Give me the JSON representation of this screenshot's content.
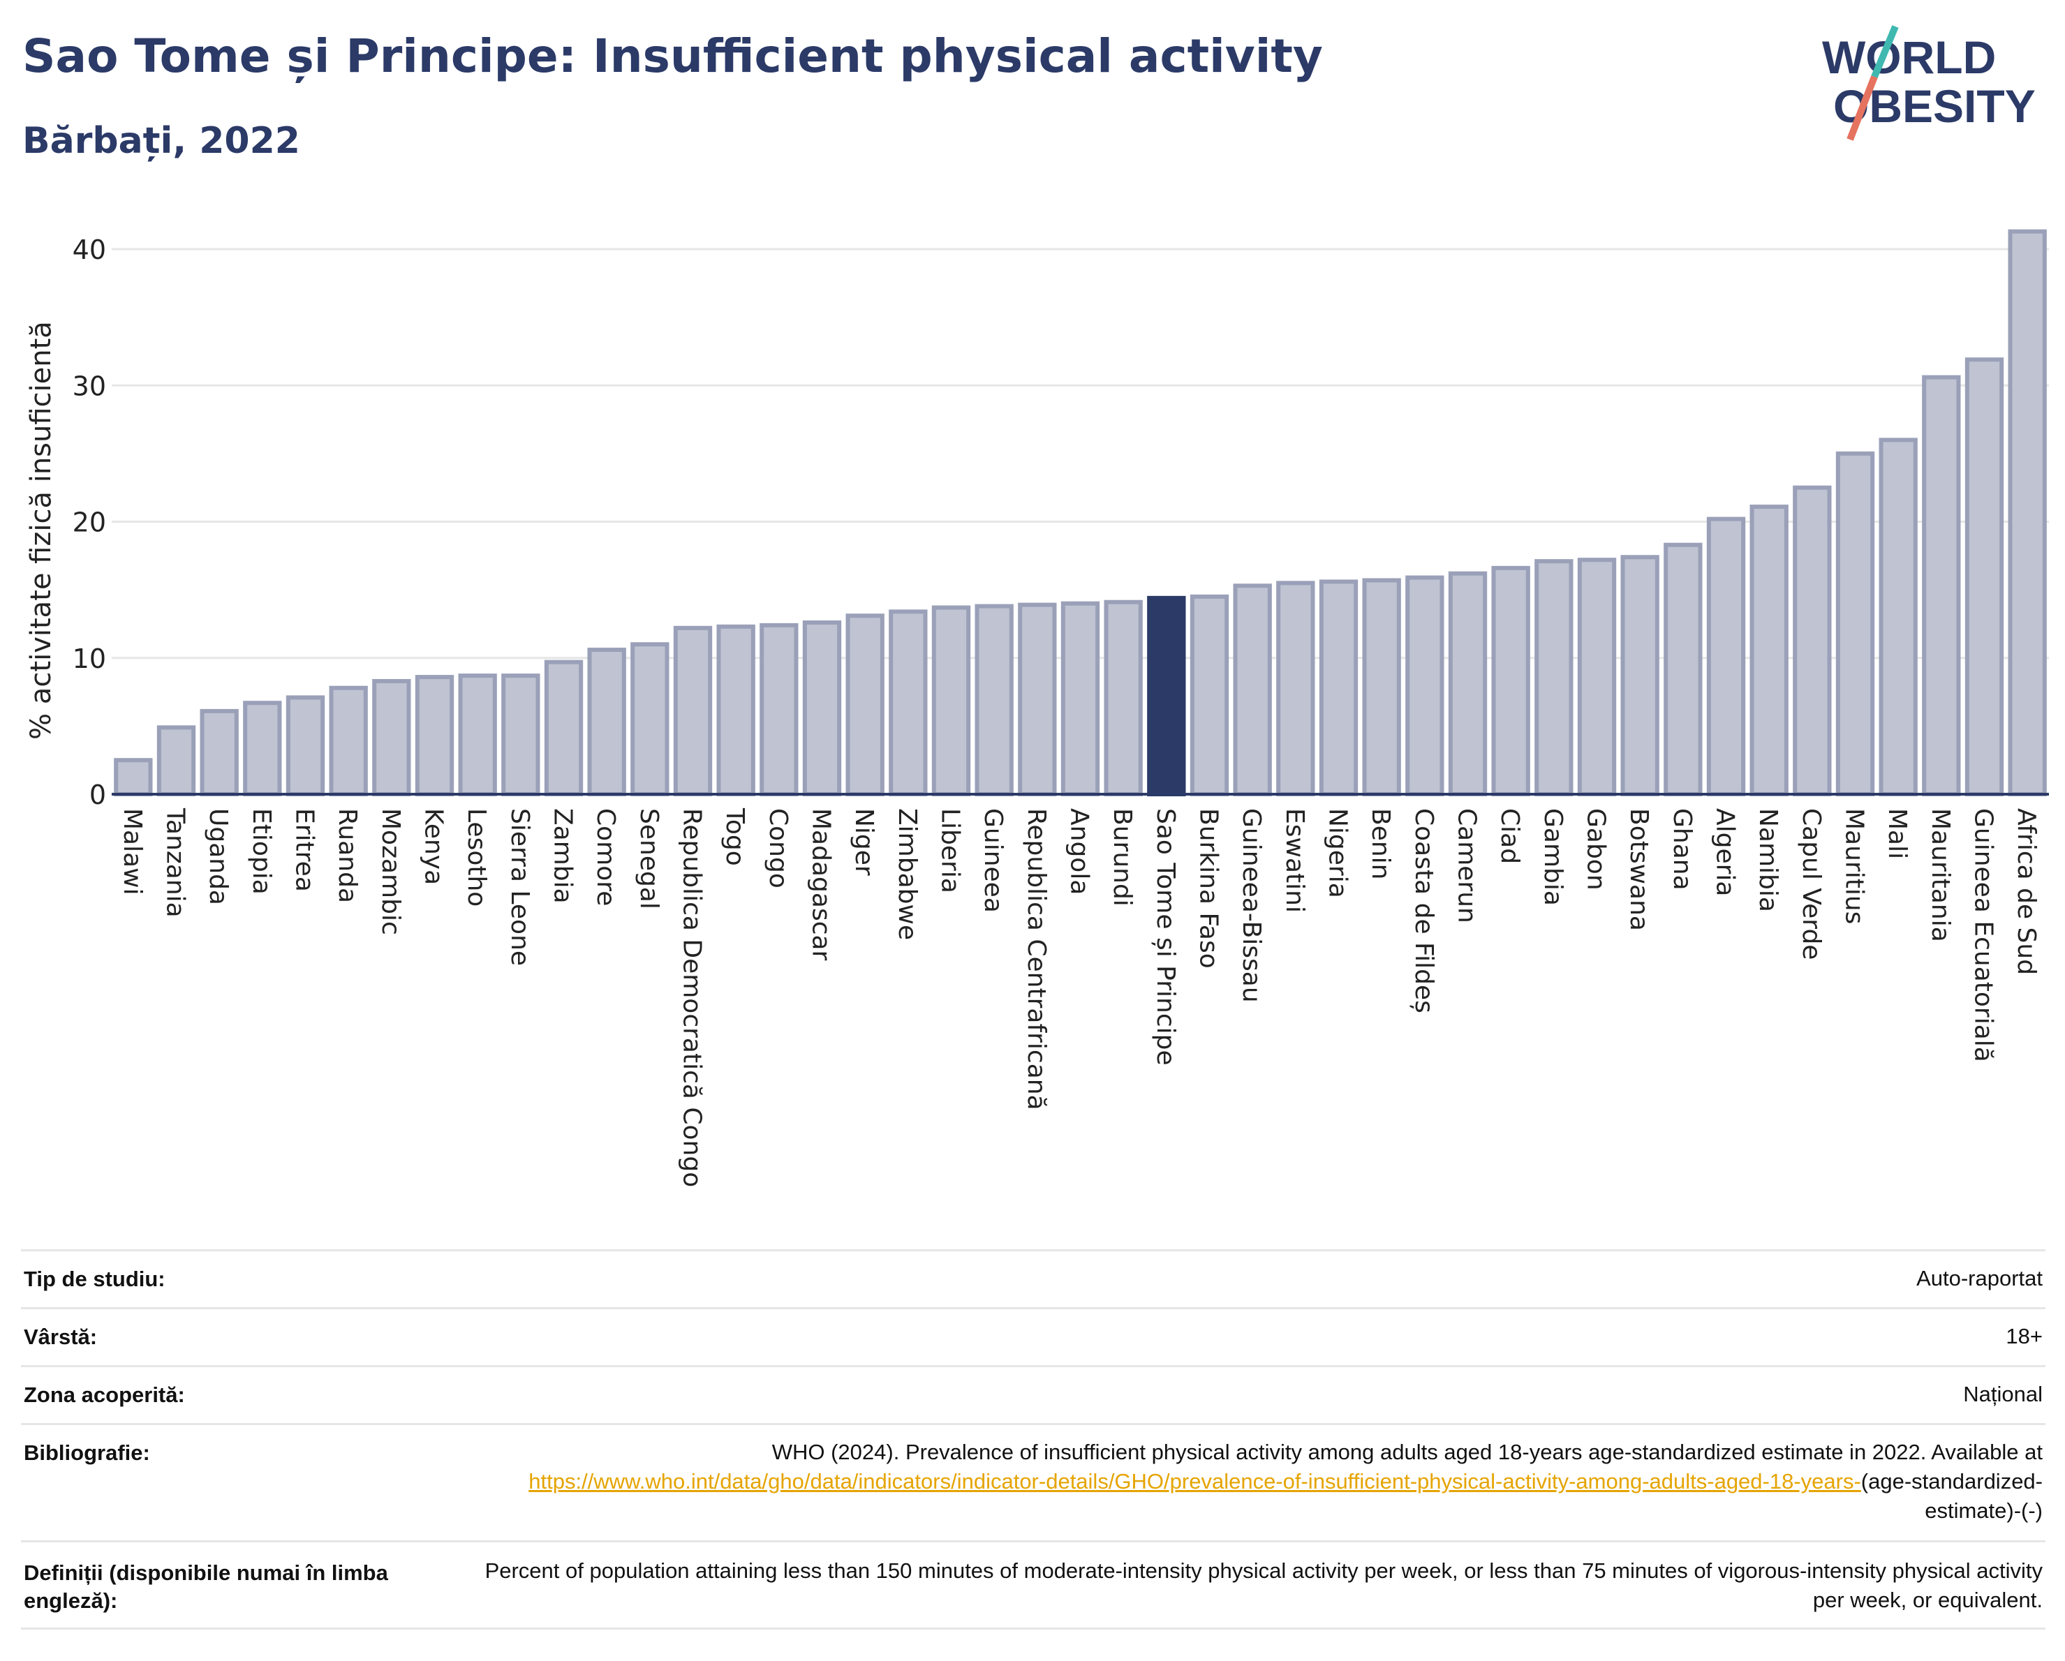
{
  "header": {
    "title": "Sao Tome și Principe: Insufficient physical activity",
    "subtitle": "Bărbați, 2022"
  },
  "logo": {
    "line1": "WORLD",
    "line2": "OBESITY"
  },
  "colors": {
    "bar": "#bfc3d2",
    "bar_border": "#9aa0b8",
    "highlight": "#2b3a67",
    "title": "#2b3a67",
    "link": "#e5a400"
  },
  "chart_data": {
    "type": "bar",
    "ylabel": "% activitate fizică insuficientă",
    "ylim": [
      0,
      42
    ],
    "yticks": [
      0,
      10,
      20,
      30,
      40
    ],
    "grid": true,
    "highlight": "Sao Tome și Principe",
    "categories": [
      "Malawi",
      "Tanzania",
      "Uganda",
      "Etiopia",
      "Eritrea",
      "Ruanda",
      "Mozambic",
      "Kenya",
      "Lesotho",
      "Sierra Leone",
      "Zambia",
      "Comore",
      "Senegal",
      "Republica Democratică Congo",
      "Togo",
      "Congo",
      "Madagascar",
      "Niger",
      "Zimbabwe",
      "Liberia",
      "Guineea",
      "Republica Centrafricană",
      "Angola",
      "Burundi",
      "Sao Tome și Principe",
      "Burkina Faso",
      "Guineea-Bissau",
      "Eswatini",
      "Nigeria",
      "Benin",
      "Coasta de Fildeș",
      "Camerun",
      "Ciad",
      "Gambia",
      "Gabon",
      "Botswana",
      "Ghana",
      "Algeria",
      "Namibia",
      "Capul Verde",
      "Mauritius",
      "Mali",
      "Mauritania",
      "Guineea Ecuatorială",
      "Africa de Sud"
    ],
    "values": [
      2.5,
      4.9,
      6.1,
      6.7,
      7.1,
      7.8,
      8.3,
      8.6,
      8.7,
      8.7,
      9.7,
      10.6,
      11.0,
      12.2,
      12.3,
      12.4,
      12.6,
      13.1,
      13.4,
      13.7,
      13.8,
      13.9,
      14.0,
      14.1,
      14.4,
      14.5,
      15.3,
      15.5,
      15.6,
      15.7,
      15.9,
      16.2,
      16.6,
      17.1,
      17.2,
      17.4,
      18.3,
      20.2,
      21.1,
      22.5,
      25.0,
      26.0,
      30.6,
      31.9,
      41.3
    ]
  },
  "info": {
    "study_type_label": "Tip de studiu:",
    "study_type_value": "Auto-raportat",
    "age_label": "Vârstă:",
    "age_value": "18+",
    "area_label": "Zona acoperită:",
    "area_value": "Național",
    "bib_label": "Bibliografie:",
    "bib_text": "WHO (2024). Prevalence of insufficient physical activity among adults aged 18-years age-standardized estimate in 2022. Available at",
    "bib_link": "https://www.who.int/data/gho/data/indicators/indicator-details/GHO/prevalence-of-insufficient-physical-activity-among-adults-aged-18-years-",
    "bib_suffix": "(age-standardized-estimate)-(-)",
    "def_label": "Definiții (disponibile numai în limba engleză):",
    "def_text": "Percent of population attaining less than 150 minutes of moderate-intensity physical activity per week, or less than 75 minutes of vigorous-intensity physical activity per week, or equivalent."
  }
}
